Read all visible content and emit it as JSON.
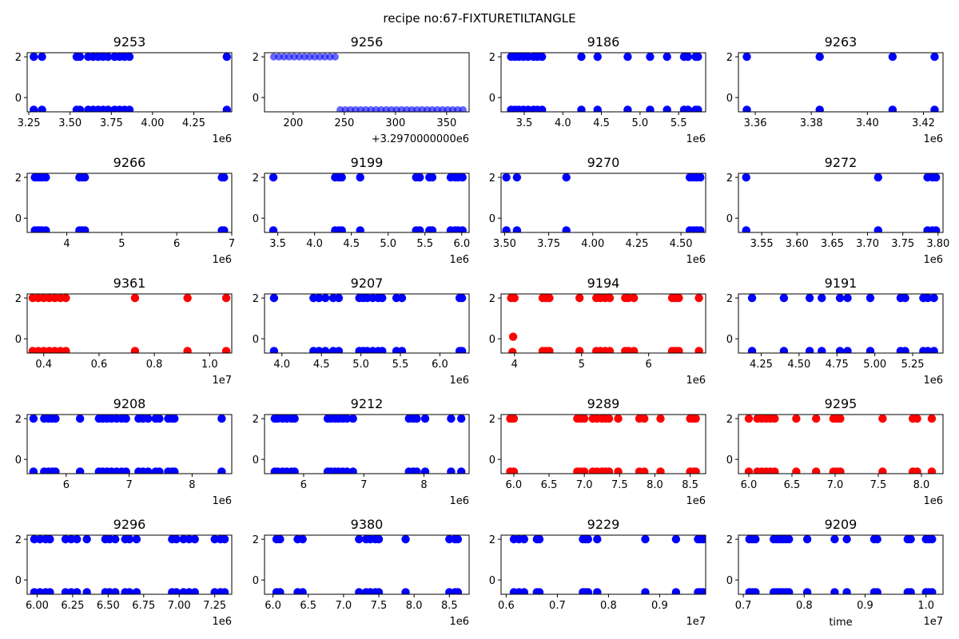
{
  "title": "recipe no:67-FIXTURETILTANGLE",
  "colors": {
    "normal": "#0000ff",
    "alert": "#ff0000"
  },
  "chart_data": [
    {
      "type": "scatter",
      "title": "9253",
      "color": "normal",
      "xlim": [
        3.24,
        4.48
      ],
      "ylim": [
        -0.7,
        2.2
      ],
      "xticks": [
        3.25,
        3.5,
        3.75,
        4.0,
        4.25
      ],
      "xtick_labels": [
        "3.25",
        "3.50",
        "3.75",
        "4.00",
        "4.25"
      ],
      "yticks": [
        0,
        2
      ],
      "ytick_labels": [
        "0",
        "2"
      ],
      "offset_text": "1e6",
      "top": [
        3.28,
        3.33,
        3.54,
        3.56,
        3.61,
        3.64,
        3.67,
        3.7,
        3.73,
        3.77,
        3.8,
        3.83,
        3.86,
        4.45
      ],
      "bottom": [
        3.28,
        3.33,
        3.54,
        3.56,
        3.61,
        3.64,
        3.67,
        3.7,
        3.73,
        3.77,
        3.8,
        3.83,
        3.86,
        4.45
      ]
    },
    {
      "type": "scatter",
      "title": "9256",
      "color": "normal",
      "alpha": 0.6,
      "xlim": [
        172,
        372
      ],
      "ylim": [
        -0.7,
        2.2
      ],
      "xticks": [
        200,
        250,
        300,
        350
      ],
      "xtick_labels": [
        "200",
        "250",
        "300",
        "350"
      ],
      "yticks": [
        0,
        2
      ],
      "ytick_labels": [
        "0",
        "2"
      ],
      "offset_text": "+3.2970000000e6",
      "top": [
        181,
        186,
        191,
        196,
        201,
        206,
        211,
        216,
        221,
        226,
        231,
        236,
        241
      ],
      "bottom": [
        246,
        251,
        256,
        261,
        266,
        271,
        276,
        281,
        286,
        291,
        296,
        301,
        306,
        311,
        316,
        321,
        326,
        331,
        336,
        341,
        346,
        351,
        356,
        361,
        366
      ]
    },
    {
      "type": "scatter",
      "title": "9186",
      "color": "normal",
      "xlim": [
        3.2,
        5.85
      ],
      "ylim": [
        -0.7,
        2.2
      ],
      "xticks": [
        3.5,
        4.0,
        4.5,
        5.0,
        5.5
      ],
      "xtick_labels": [
        "3.5",
        "4.0",
        "4.5",
        "5.0",
        "5.5"
      ],
      "yticks": [
        0,
        2
      ],
      "ytick_labels": [
        "0",
        "2"
      ],
      "offset_text": "1e6",
      "top": [
        3.33,
        3.38,
        3.43,
        3.49,
        3.55,
        3.62,
        3.67,
        3.73,
        4.24,
        4.45,
        4.84,
        5.13,
        5.35,
        5.57,
        5.62,
        5.72,
        5.75
      ],
      "bottom": [
        3.33,
        3.38,
        3.43,
        3.49,
        3.55,
        3.62,
        3.67,
        3.73,
        4.24,
        4.45,
        4.84,
        5.13,
        5.35,
        5.57,
        5.62,
        5.72,
        5.75
      ]
    },
    {
      "type": "scatter",
      "title": "9263",
      "color": "normal",
      "xlim": [
        3.354,
        3.427
      ],
      "ylim": [
        -0.7,
        2.2
      ],
      "xticks": [
        3.36,
        3.38,
        3.4,
        3.42
      ],
      "xtick_labels": [
        "3.36",
        "3.38",
        "3.40",
        "3.42"
      ],
      "yticks": [
        0,
        2
      ],
      "ytick_labels": [
        "0",
        "2"
      ],
      "offset_text": "1e6",
      "top": [
        3.357,
        3.383,
        3.409,
        3.424
      ],
      "bottom": [
        3.357,
        3.383,
        3.409,
        3.424
      ]
    },
    {
      "type": "scatter",
      "title": "9266",
      "color": "normal",
      "xlim": [
        3.28,
        7.0
      ],
      "ylim": [
        -0.7,
        2.2
      ],
      "xticks": [
        4,
        5,
        6,
        7
      ],
      "xtick_labels": [
        "4",
        "5",
        "6",
        "7"
      ],
      "yticks": [
        0,
        2
      ],
      "ytick_labels": [
        "0",
        "2"
      ],
      "offset_text": "1e6",
      "top": [
        3.42,
        3.47,
        3.51,
        3.55,
        3.62,
        4.23,
        4.28,
        4.33,
        6.82,
        6.86
      ],
      "bottom": [
        3.42,
        3.47,
        3.51,
        3.55,
        3.62,
        4.23,
        4.28,
        4.33,
        6.82,
        6.86
      ]
    },
    {
      "type": "scatter",
      "title": "9199",
      "color": "normal",
      "xlim": [
        3.32,
        6.1
      ],
      "ylim": [
        -0.7,
        2.2
      ],
      "xticks": [
        3.5,
        4.0,
        4.5,
        5.0,
        5.5,
        6.0
      ],
      "xtick_labels": [
        "3.5",
        "4.0",
        "4.5",
        "5.0",
        "5.5",
        "6.0"
      ],
      "yticks": [
        0,
        2
      ],
      "ytick_labels": [
        "0",
        "2"
      ],
      "offset_text": "1e6",
      "top": [
        3.44,
        4.28,
        4.33,
        4.37,
        4.62,
        5.38,
        5.43,
        5.56,
        5.6,
        5.85,
        5.91,
        5.95,
        6.01
      ],
      "bottom": [
        3.44,
        4.28,
        4.33,
        4.37,
        4.62,
        5.38,
        5.43,
        5.56,
        5.6,
        5.85,
        5.91,
        5.95,
        6.01
      ]
    },
    {
      "type": "scatter",
      "title": "9270",
      "color": "normal",
      "xlim": [
        3.48,
        4.64
      ],
      "ylim": [
        -0.7,
        2.2
      ],
      "xticks": [
        3.5,
        3.75,
        4.0,
        4.25,
        4.5
      ],
      "xtick_labels": [
        "3.50",
        "3.75",
        "4.00",
        "4.25",
        "4.50"
      ],
      "yticks": [
        0,
        2
      ],
      "ytick_labels": [
        "0",
        "2"
      ],
      "offset_text": "1e6",
      "top": [
        3.51,
        3.57,
        3.85,
        4.55,
        4.57,
        4.59,
        4.61
      ],
      "bottom": [
        3.51,
        3.57,
        3.85,
        4.55,
        4.57,
        4.59,
        4.61
      ]
    },
    {
      "type": "scatter",
      "title": "9272",
      "color": "normal",
      "xlim": [
        3.517,
        3.807
      ],
      "ylim": [
        -0.7,
        2.2
      ],
      "xticks": [
        3.55,
        3.6,
        3.65,
        3.7,
        3.75,
        3.8
      ],
      "xtick_labels": [
        "3.55",
        "3.60",
        "3.65",
        "3.70",
        "3.75",
        "3.80"
      ],
      "yticks": [
        0,
        2
      ],
      "ytick_labels": [
        "0",
        "2"
      ],
      "offset_text": "1e6",
      "top": [
        3.528,
        3.715,
        3.785,
        3.792,
        3.797
      ],
      "bottom": [
        3.528,
        3.715,
        3.785,
        3.792,
        3.797
      ]
    },
    {
      "type": "scatter",
      "title": "9361",
      "color": "alert",
      "xlim": [
        0.34,
        1.08
      ],
      "ylim": [
        -0.7,
        2.2
      ],
      "xticks": [
        0.4,
        0.6,
        0.8,
        1.0
      ],
      "xtick_labels": [
        "0.4",
        "0.6",
        "0.8",
        "1.0"
      ],
      "yticks": [
        0,
        2
      ],
      "ytick_labels": [
        "0",
        "2"
      ],
      "offset_text": "1e7",
      "top": [
        0.36,
        0.38,
        0.4,
        0.42,
        0.44,
        0.46,
        0.48,
        0.73,
        0.92,
        1.06
      ],
      "bottom": [
        0.36,
        0.38,
        0.4,
        0.42,
        0.44,
        0.46,
        0.48,
        0.73,
        0.92,
        1.06
      ]
    },
    {
      "type": "scatter",
      "title": "9207",
      "color": "normal",
      "xlim": [
        3.78,
        6.37
      ],
      "ylim": [
        -0.7,
        2.2
      ],
      "xticks": [
        4.0,
        4.5,
        5.0,
        5.5,
        6.0
      ],
      "xtick_labels": [
        "4.0",
        "4.5",
        "5.0",
        "5.5",
        "6.0"
      ],
      "yticks": [
        0,
        2
      ],
      "ytick_labels": [
        "0",
        "2"
      ],
      "offset_text": "1e6",
      "top": [
        3.9,
        4.4,
        4.47,
        4.55,
        4.65,
        4.72,
        4.98,
        5.03,
        5.08,
        5.15,
        5.22,
        5.27,
        5.45,
        5.52,
        6.25,
        6.28
      ],
      "bottom": [
        3.9,
        4.4,
        4.47,
        4.55,
        4.65,
        4.72,
        4.98,
        5.03,
        5.08,
        5.15,
        5.22,
        5.27,
        5.45,
        5.52,
        6.25,
        6.28
      ]
    },
    {
      "type": "scatter",
      "title": "9194",
      "color": "alert",
      "xlim": [
        3.8,
        6.85
      ],
      "ylim": [
        -0.7,
        2.2
      ],
      "xticks": [
        4,
        5,
        6
      ],
      "xtick_labels": [
        "4",
        "5",
        "6"
      ],
      "yticks": [
        0,
        2
      ],
      "ytick_labels": [
        "0",
        "2"
      ],
      "offset_text": "1e6",
      "top": [
        3.95,
        4.0,
        4.42,
        4.47,
        4.52,
        4.97,
        5.22,
        5.28,
        5.35,
        5.42,
        5.65,
        5.7,
        5.78,
        6.35,
        6.4,
        6.45,
        6.75
      ],
      "bottom": [
        4.42,
        4.47,
        4.52,
        4.97,
        5.22,
        5.28,
        5.35,
        5.42,
        5.65,
        5.7,
        5.78,
        6.35,
        6.4,
        6.45,
        6.75
      ],
      "extra": [
        {
          "x": 3.97,
          "y": -0.65
        },
        {
          "x": 3.98,
          "y": 0.1
        },
        {
          "x": 3.97,
          "y": -1.05
        }
      ]
    },
    {
      "type": "scatter",
      "title": "9191",
      "color": "normal",
      "xlim": [
        4.1,
        5.45
      ],
      "ylim": [
        -0.7,
        2.2
      ],
      "xticks": [
        4.25,
        4.5,
        4.75,
        5.0,
        5.25
      ],
      "xtick_labels": [
        "4.25",
        "4.50",
        "4.75",
        "5.00",
        "5.25"
      ],
      "yticks": [
        0,
        2
      ],
      "ytick_labels": [
        "0",
        "2"
      ],
      "offset_text": "1e6",
      "top": [
        4.19,
        4.4,
        4.57,
        4.65,
        4.77,
        4.82,
        4.97,
        5.17,
        5.2,
        5.32,
        5.35,
        5.39
      ],
      "bottom": [
        4.19,
        4.4,
        4.57,
        4.65,
        4.77,
        4.82,
        4.97,
        5.17,
        5.2,
        5.32,
        5.35,
        5.39
      ]
    },
    {
      "type": "scatter",
      "title": "9208",
      "color": "normal",
      "xlim": [
        5.38,
        8.63
      ],
      "ylim": [
        -0.7,
        2.2
      ],
      "xticks": [
        6,
        7,
        8
      ],
      "xtick_labels": [
        "6",
        "7",
        "8"
      ],
      "yticks": [
        0,
        2
      ],
      "ytick_labels": [
        "0",
        "2"
      ],
      "offset_text": "1e6",
      "top": [
        5.48,
        5.65,
        5.72,
        5.78,
        5.83,
        6.22,
        6.52,
        6.58,
        6.65,
        6.72,
        6.8,
        6.88,
        6.95,
        7.15,
        7.22,
        7.3,
        7.42,
        7.48,
        7.62,
        7.68,
        7.72,
        8.47
      ],
      "bottom": [
        5.48,
        5.65,
        5.72,
        5.78,
        5.83,
        6.22,
        6.52,
        6.58,
        6.65,
        6.72,
        6.8,
        6.88,
        6.95,
        7.15,
        7.22,
        7.3,
        7.42,
        7.48,
        7.62,
        7.68,
        7.72,
        8.47
      ]
    },
    {
      "type": "scatter",
      "title": "9212",
      "color": "normal",
      "xlim": [
        5.35,
        8.75
      ],
      "ylim": [
        -0.7,
        2.2
      ],
      "xticks": [
        6,
        7,
        8
      ],
      "xtick_labels": [
        "6",
        "7",
        "8"
      ],
      "yticks": [
        0,
        2
      ],
      "ytick_labels": [
        "0",
        "2"
      ],
      "offset_text": "1e6",
      "top": [
        5.52,
        5.57,
        5.65,
        5.72,
        5.8,
        5.85,
        6.4,
        6.45,
        6.52,
        6.58,
        6.65,
        6.72,
        6.82,
        7.75,
        7.82,
        7.88,
        8.02,
        8.45,
        8.62
      ],
      "bottom": [
        5.52,
        5.57,
        5.65,
        5.72,
        5.8,
        5.85,
        6.4,
        6.45,
        6.52,
        6.58,
        6.65,
        6.72,
        6.82,
        7.75,
        7.82,
        7.88,
        8.02,
        8.45,
        8.62
      ]
    },
    {
      "type": "scatter",
      "title": "9289",
      "color": "alert",
      "xlim": [
        5.82,
        8.72
      ],
      "ylim": [
        -0.7,
        2.2
      ],
      "xticks": [
        6.0,
        6.5,
        7.0,
        7.5,
        8.0,
        8.5
      ],
      "xtick_labels": [
        "6.0",
        "6.5",
        "7.0",
        "7.5",
        "8.0",
        "8.5"
      ],
      "yticks": [
        0,
        2
      ],
      "ytick_labels": [
        "0",
        "2"
      ],
      "offset_text": "1e6",
      "top": [
        5.95,
        6.0,
        6.9,
        6.95,
        7.0,
        7.12,
        7.18,
        7.25,
        7.3,
        7.35,
        7.48,
        7.78,
        7.85,
        8.08,
        8.5,
        8.55,
        8.58
      ],
      "bottom": [
        5.95,
        6.0,
        6.9,
        6.95,
        7.0,
        7.12,
        7.18,
        7.25,
        7.3,
        7.35,
        7.48,
        7.78,
        7.85,
        8.08,
        8.5,
        8.55,
        8.58
      ]
    },
    {
      "type": "scatter",
      "title": "9295",
      "color": "alert",
      "xlim": [
        5.88,
        8.25
      ],
      "ylim": [
        -0.7,
        2.2
      ],
      "xticks": [
        6.0,
        6.5,
        7.0,
        7.5,
        8.0
      ],
      "xtick_labels": [
        "6.0",
        "6.5",
        "7.0",
        "7.5",
        "8.0"
      ],
      "yticks": [
        0,
        2
      ],
      "ytick_labels": [
        "0",
        "2"
      ],
      "offset_text": "1e6",
      "top": [
        6.0,
        6.1,
        6.15,
        6.2,
        6.25,
        6.3,
        6.55,
        6.78,
        6.98,
        7.02,
        7.06,
        7.55,
        7.9,
        7.95,
        8.12
      ],
      "bottom": [
        6.0,
        6.1,
        6.15,
        6.2,
        6.25,
        6.3,
        6.55,
        6.78,
        6.98,
        7.02,
        7.06,
        7.55,
        7.9,
        7.95,
        8.12
      ]
    },
    {
      "type": "scatter",
      "title": "9296",
      "color": "normal",
      "xlim": [
        5.93,
        7.37
      ],
      "ylim": [
        -0.7,
        2.2
      ],
      "xticks": [
        6.0,
        6.25,
        6.5,
        6.75,
        7.0,
        7.25
      ],
      "xtick_labels": [
        "6.00",
        "6.25",
        "6.50",
        "6.75",
        "7.00",
        "7.25"
      ],
      "yticks": [
        0,
        2
      ],
      "ytick_labels": [
        "0",
        "2"
      ],
      "offset_text": "1e6",
      "top": [
        5.98,
        6.02,
        6.06,
        6.09,
        6.2,
        6.24,
        6.28,
        6.35,
        6.48,
        6.51,
        6.55,
        6.62,
        6.65,
        6.7,
        6.95,
        6.98,
        7.03,
        7.07,
        7.11,
        7.25,
        7.29,
        7.32
      ],
      "bottom": [
        5.98,
        6.02,
        6.06,
        6.09,
        6.2,
        6.24,
        6.28,
        6.35,
        6.48,
        6.51,
        6.55,
        6.62,
        6.65,
        6.7,
        6.95,
        6.98,
        7.03,
        7.07,
        7.11,
        7.25,
        7.29,
        7.32
      ]
    },
    {
      "type": "scatter",
      "title": "9380",
      "color": "normal",
      "xlim": [
        5.88,
        8.78
      ],
      "ylim": [
        -0.7,
        2.2
      ],
      "xticks": [
        6.0,
        6.5,
        7.0,
        7.5,
        8.0,
        8.5
      ],
      "xtick_labels": [
        "6.0",
        "6.5",
        "7.0",
        "7.5",
        "8.0",
        "8.5"
      ],
      "yticks": [
        0,
        2
      ],
      "ytick_labels": [
        "0",
        "2"
      ],
      "offset_text": "1e6",
      "top": [
        6.05,
        6.1,
        6.35,
        6.42,
        7.22,
        7.32,
        7.38,
        7.45,
        7.5,
        7.88,
        8.5,
        8.58,
        8.62
      ],
      "bottom": [
        6.05,
        6.1,
        6.35,
        6.42,
        7.22,
        7.32,
        7.38,
        7.45,
        7.5,
        7.88,
        8.5,
        8.58,
        8.62
      ]
    },
    {
      "type": "scatter",
      "title": "9229",
      "color": "normal",
      "xlim": [
        0.59,
        0.99
      ],
      "ylim": [
        -0.7,
        2.2
      ],
      "xticks": [
        0.6,
        0.7,
        0.8,
        0.9
      ],
      "xtick_labels": [
        "0.6",
        "0.7",
        "0.8",
        "0.9"
      ],
      "yticks": [
        0,
        2
      ],
      "ytick_labels": [
        "0",
        "2"
      ],
      "offset_text": "1e7",
      "top": [
        0.615,
        0.625,
        0.635,
        0.66,
        0.665,
        0.75,
        0.755,
        0.76,
        0.778,
        0.872,
        0.932,
        0.975,
        0.98,
        0.985
      ],
      "bottom": [
        0.615,
        0.625,
        0.635,
        0.66,
        0.665,
        0.75,
        0.755,
        0.76,
        0.778,
        0.872,
        0.932,
        0.975,
        0.98,
        0.985
      ]
    },
    {
      "type": "scatter",
      "title": "9209",
      "color": "normal",
      "xlim": [
        0.692,
        1.028
      ],
      "ylim": [
        -0.7,
        2.2
      ],
      "xticks": [
        0.7,
        0.8,
        0.9,
        1.0
      ],
      "xtick_labels": [
        "0.7",
        "0.8",
        "0.9",
        "1.0"
      ],
      "yticks": [
        0,
        2
      ],
      "ytick_labels": [
        "0",
        "2"
      ],
      "offset_text": "1e7",
      "xlabel": "time",
      "top": [
        0.71,
        0.715,
        0.72,
        0.75,
        0.755,
        0.76,
        0.765,
        0.77,
        0.775,
        0.805,
        0.85,
        0.87,
        0.915,
        0.92,
        0.97,
        0.975,
        1.0,
        1.005,
        1.01
      ],
      "bottom": [
        0.71,
        0.715,
        0.72,
        0.75,
        0.755,
        0.76,
        0.765,
        0.77,
        0.775,
        0.805,
        0.85,
        0.87,
        0.915,
        0.92,
        0.97,
        0.975,
        1.0,
        1.005,
        1.01
      ]
    }
  ]
}
